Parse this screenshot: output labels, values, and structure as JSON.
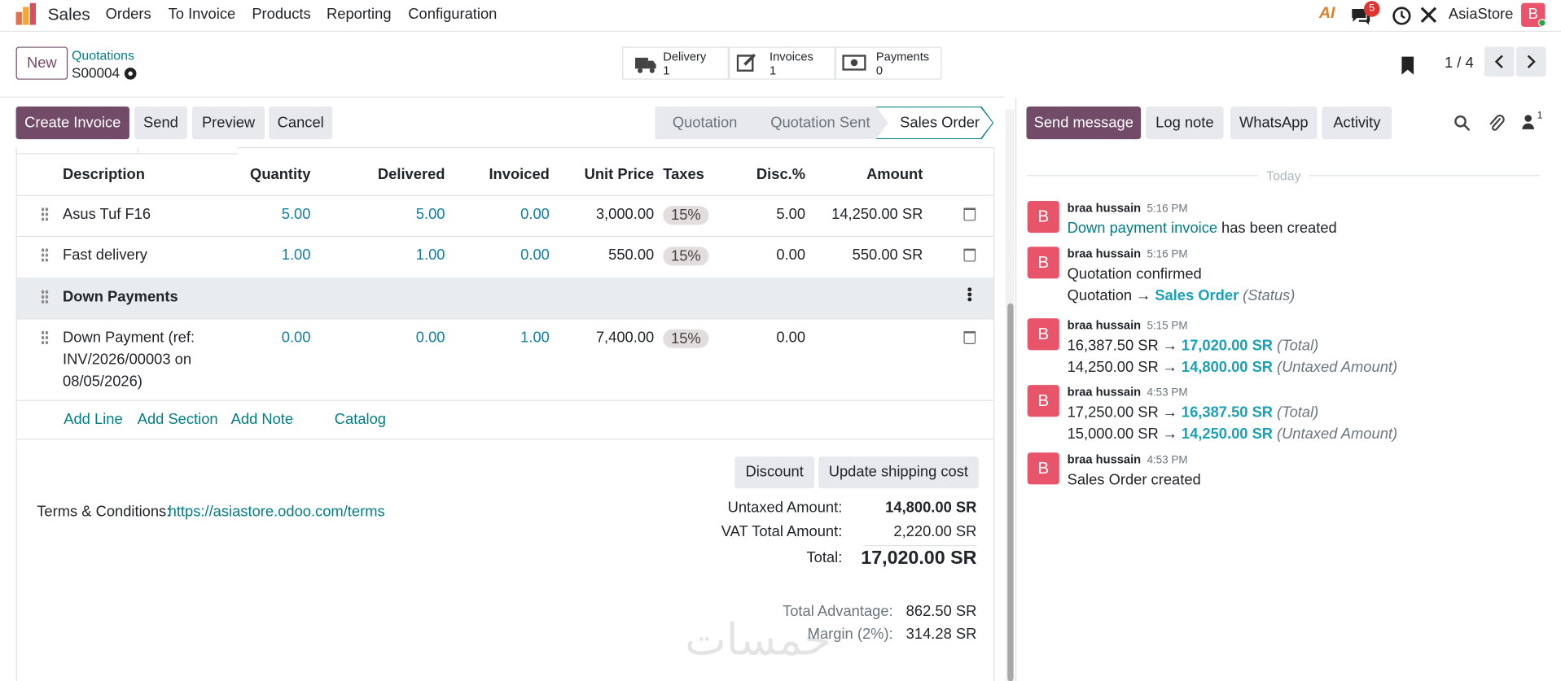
{
  "navbar": {
    "app": "Sales",
    "menu": [
      "Orders",
      "To Invoice",
      "Products",
      "Reporting",
      "Configuration"
    ],
    "ai_icon": "AI",
    "messages_badge": "5",
    "company": "AsiaStore",
    "avatar": "B"
  },
  "control_panel": {
    "new_button": "New",
    "breadcrumb": "Quotations",
    "record": "S00004",
    "smart_buttons": [
      {
        "label": "Delivery",
        "count": "1"
      },
      {
        "label": "Invoices",
        "count": "1"
      },
      {
        "label": "Payments",
        "count": "0"
      }
    ],
    "pager": "1 / 4"
  },
  "actions": {
    "buttons": [
      "Create Invoice",
      "Send",
      "Preview",
      "Cancel"
    ],
    "stages": [
      "Quotation",
      "Quotation Sent",
      "Sales Order"
    ]
  },
  "table": {
    "headers": [
      "Description",
      "Quantity",
      "Delivered",
      "Invoiced",
      "Unit Price",
      "Taxes",
      "Disc.%",
      "Amount"
    ],
    "rows": [
      {
        "description": "Asus Tuf F16",
        "quantity": "5.00",
        "delivered": "5.00",
        "invoiced": "0.00",
        "unit_price": "3,000.00",
        "taxes": "15%",
        "discount": "5.00",
        "amount": "14,250.00 SR"
      },
      {
        "description": "Fast delivery",
        "quantity": "1.00",
        "delivered": "1.00",
        "invoiced": "0.00",
        "unit_price": "550.00",
        "taxes": "15%",
        "discount": "0.00",
        "amount": "550.00 SR"
      },
      {
        "section": "Down Payments"
      },
      {
        "description": "Down Payment (ref: INV/2026/00003 on 08/05/2026)",
        "quantity": "0.00",
        "delivered": "0.00",
        "invoiced": "1.00",
        "unit_price": "7,400.00",
        "taxes": "15%",
        "discount": "0.00"
      }
    ],
    "add_links": [
      "Add Line",
      "Add Section",
      "Add Note",
      "Catalog"
    ]
  },
  "footer": {
    "buttons": [
      "Discount",
      "Update shipping cost"
    ],
    "terms_label": "Terms & Conditions:",
    "terms_link": "https://asiastore.odoo.com/terms",
    "totals": [
      {
        "label": "Untaxed Amount:",
        "value": "14,800.00 SR"
      },
      {
        "label": "VAT Total Amount:",
        "value": "2,220.00 SR"
      },
      {
        "label": "Total:",
        "value": "17,020.00 SR"
      }
    ],
    "extra": [
      {
        "label": "Total Advantage:",
        "value": "862.50 SR"
      },
      {
        "label": "Margin (2%):",
        "value": "314.28 SR"
      }
    ],
    "watermark": "خمسات"
  },
  "chatter": {
    "buttons": [
      "Send message",
      "Log note",
      "WhatsApp",
      "Activity"
    ],
    "followers": "1",
    "day": "Today",
    "avatar": "B",
    "arrow": "→",
    "messages": [
      {
        "author": "braa hussain",
        "time": "5:16 PM",
        "link": "Down payment invoice",
        "text": "has been created"
      },
      {
        "author": "braa hussain",
        "time": "5:16 PM",
        "text": "Quotation confirmed",
        "changes": [
          {
            "old": "Quotation",
            "new": "Sales Order",
            "field": "(Status)"
          }
        ]
      },
      {
        "author": "braa hussain",
        "time": "5:15 PM",
        "changes": [
          {
            "old": "16,387.50 SR",
            "new": "17,020.00 SR",
            "field": "(Total)"
          },
          {
            "old": "14,250.00 SR",
            "new": "14,800.00 SR",
            "field": "(Untaxed Amount)"
          }
        ]
      },
      {
        "author": "braa hussain",
        "time": "4:53 PM",
        "changes": [
          {
            "old": "17,250.00 SR",
            "new": "16,387.50 SR",
            "field": "(Total)"
          },
          {
            "old": "15,000.00 SR",
            "new": "14,250.00 SR",
            "field": "(Untaxed Amount)"
          }
        ]
      },
      {
        "author": "braa hussain",
        "time": "4:53 PM",
        "text": "Sales Order created"
      }
    ]
  }
}
